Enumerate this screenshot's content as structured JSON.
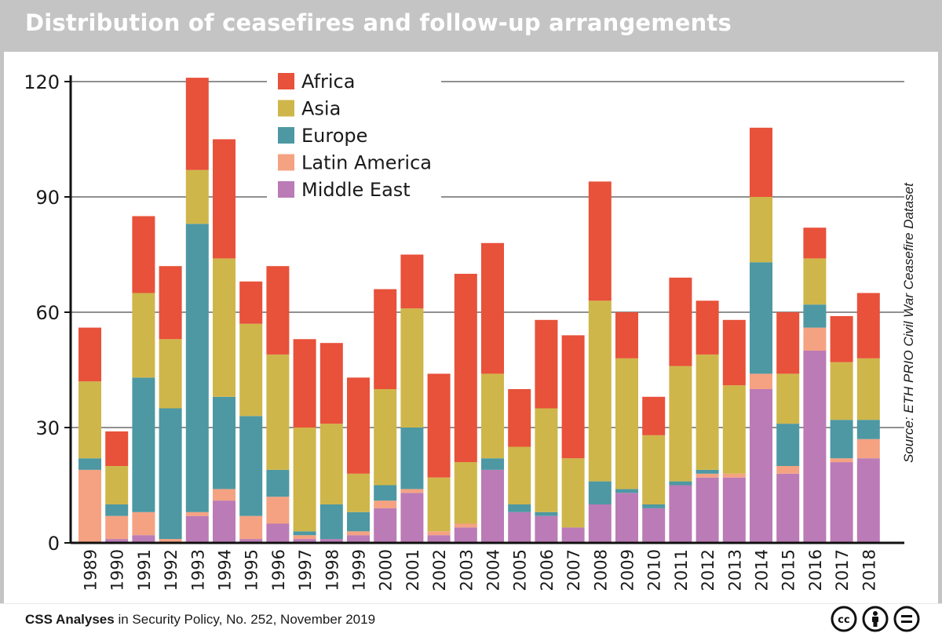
{
  "title": "Distribution of ceasefires and follow-up arrangements",
  "footer": {
    "publication": "CSS Analyses",
    "details": "in Security Policy, No. 252, November 2019"
  },
  "source": "Source: ETH PRIO Civil War Ceasefire Dataset",
  "license_icons": [
    "cc-icon",
    "attribution-icon",
    "no-derivatives-icon"
  ],
  "chart_data": {
    "type": "bar",
    "stacked": true,
    "title": "Distribution of ceasefires and follow-up arrangements",
    "xlabel": "",
    "ylabel": "",
    "ylim": [
      0,
      120
    ],
    "yticks": [
      0,
      30,
      60,
      90,
      120
    ],
    "grid": true,
    "legend_position": "top-left",
    "categories": [
      "1989",
      "1990",
      "1991",
      "1992",
      "1993",
      "1994",
      "1995",
      "1996",
      "1997",
      "1998",
      "1999",
      "2000",
      "2001",
      "2002",
      "2003",
      "2004",
      "2005",
      "2006",
      "2007",
      "2008",
      "2009",
      "2010",
      "2011",
      "2012",
      "2013",
      "2014",
      "2015",
      "2016",
      "2017",
      "2018"
    ],
    "series": [
      {
        "name": "Middle East",
        "color": "#bb7bb6",
        "values": [
          0,
          1,
          2,
          0,
          7,
          11,
          1,
          5,
          1,
          1,
          2,
          9,
          13,
          2,
          4,
          19,
          8,
          7,
          4,
          10,
          13,
          9,
          15,
          17,
          17,
          40,
          18,
          50,
          21,
          22
        ]
      },
      {
        "name": "Latin America",
        "color": "#f5a282",
        "values": [
          19,
          6,
          6,
          1,
          1,
          3,
          6,
          7,
          1,
          0,
          1,
          2,
          1,
          1,
          1,
          0,
          0,
          0,
          0,
          0,
          0,
          0,
          0,
          1,
          1,
          4,
          2,
          6,
          1,
          5
        ]
      },
      {
        "name": "Europe",
        "color": "#4d98a3",
        "values": [
          3,
          3,
          35,
          34,
          75,
          24,
          26,
          7,
          1,
          9,
          5,
          4,
          16,
          0,
          0,
          3,
          2,
          1,
          0,
          6,
          1,
          1,
          1,
          1,
          0,
          29,
          11,
          6,
          10,
          5
        ]
      },
      {
        "name": "Asia",
        "color": "#cfb64a",
        "values": [
          20,
          10,
          22,
          18,
          14,
          36,
          24,
          30,
          27,
          21,
          10,
          25,
          31,
          14,
          16,
          22,
          15,
          27,
          18,
          47,
          34,
          18,
          30,
          30,
          23,
          17,
          13,
          12,
          15,
          16
        ]
      },
      {
        "name": "Africa",
        "color": "#e8513a",
        "values": [
          14,
          9,
          20,
          19,
          24,
          31,
          11,
          23,
          23,
          21,
          25,
          26,
          14,
          27,
          49,
          34,
          15,
          23,
          32,
          31,
          12,
          10,
          23,
          14,
          17,
          18,
          16,
          8,
          12,
          17
        ]
      }
    ],
    "legend_order": [
      "Africa",
      "Asia",
      "Europe",
      "Latin America",
      "Middle East"
    ]
  }
}
